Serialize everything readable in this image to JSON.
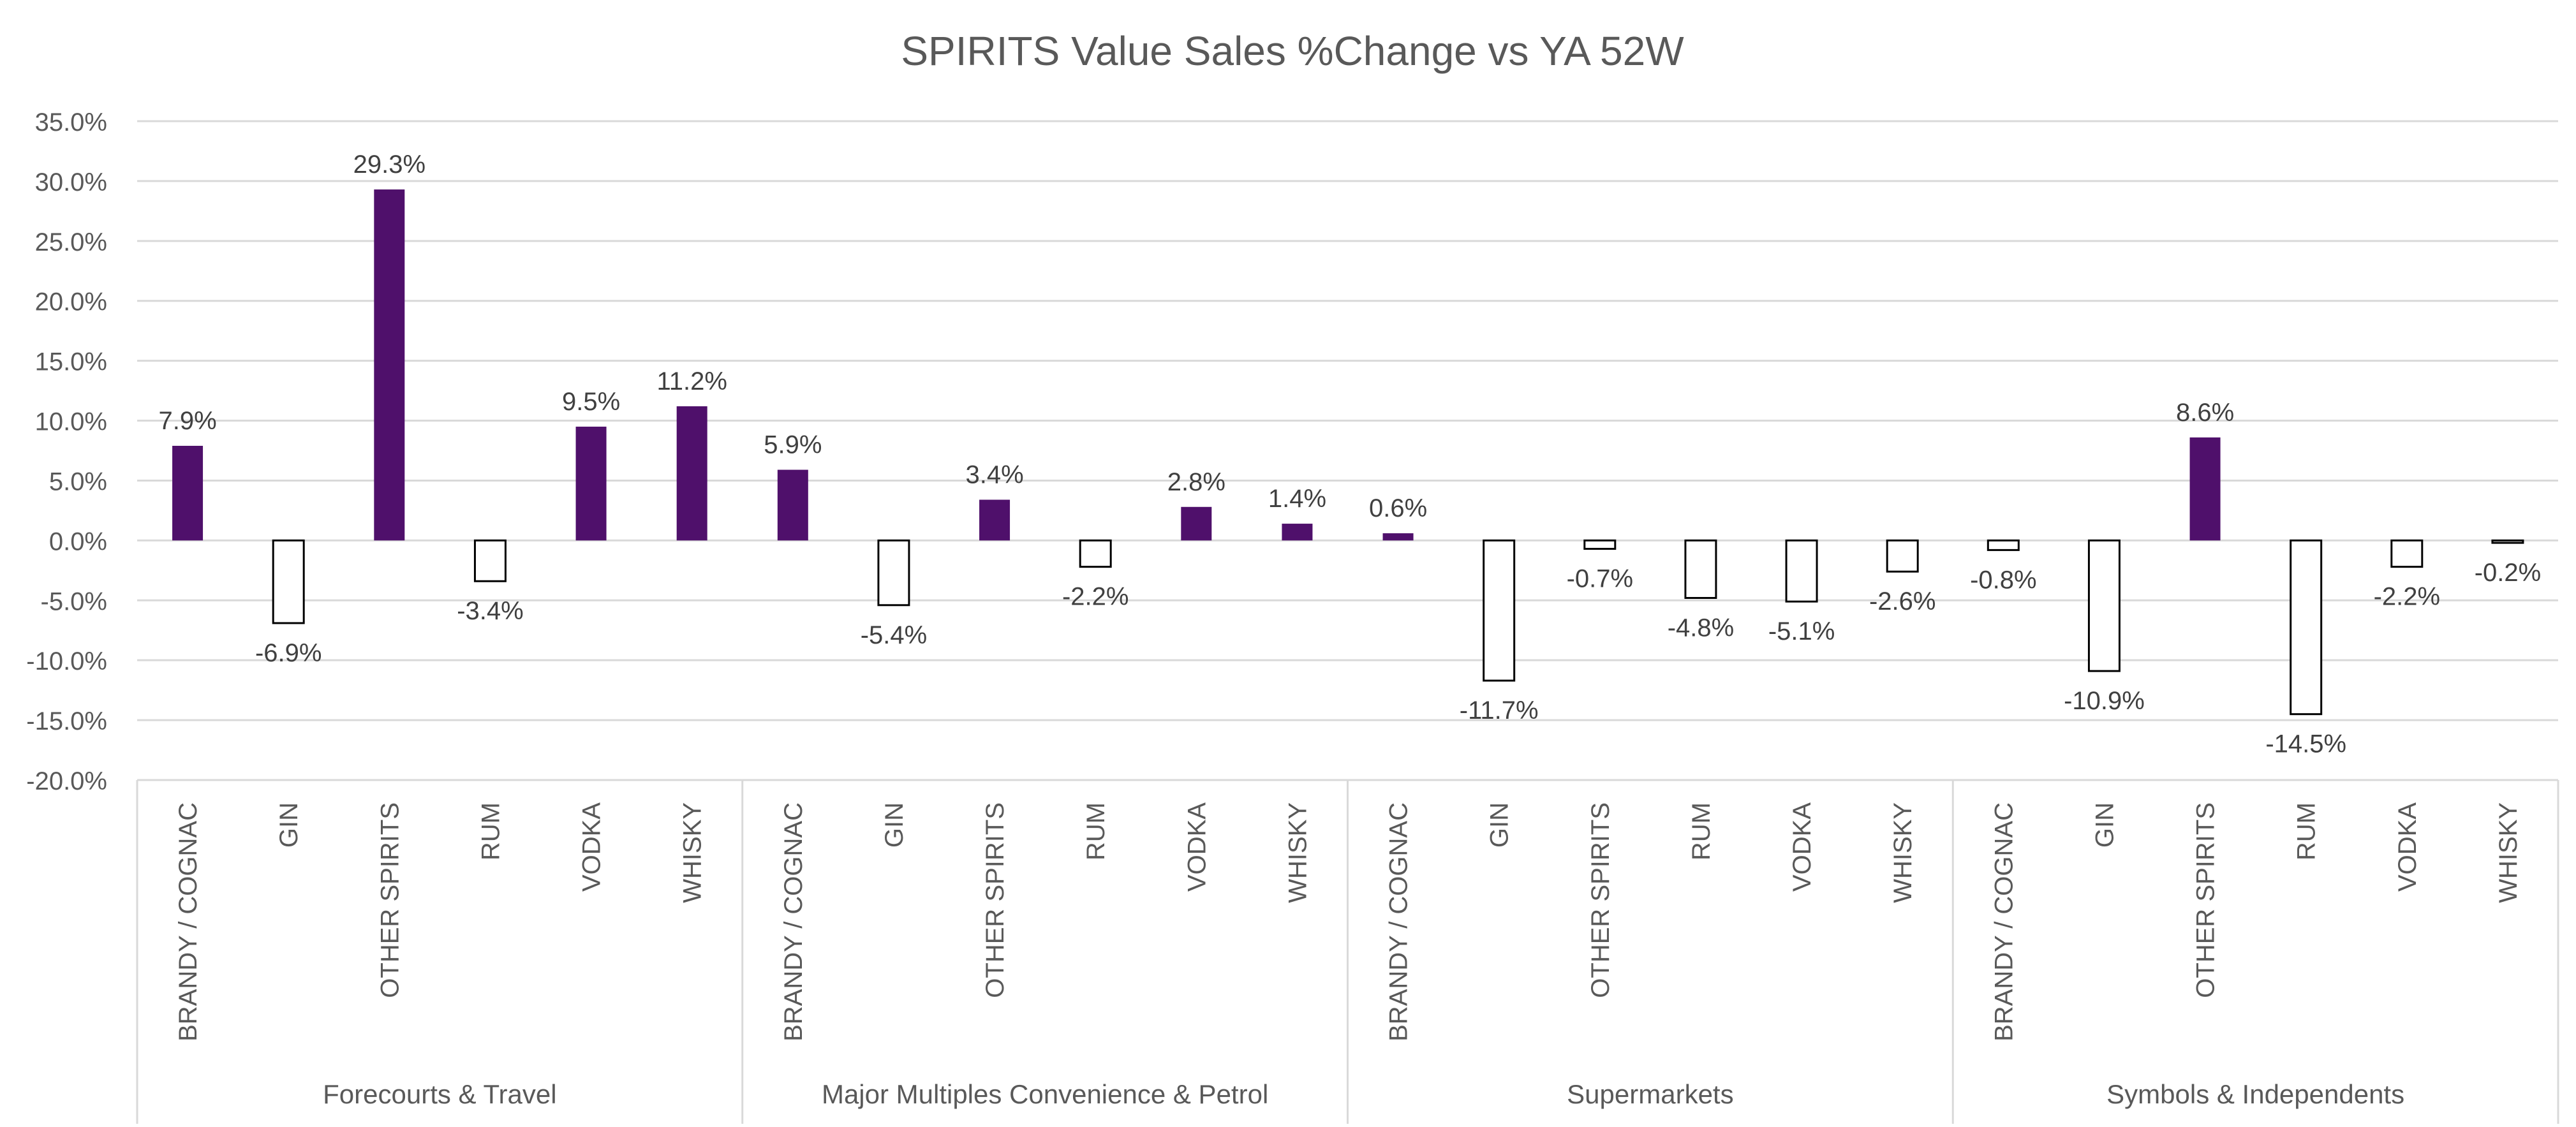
{
  "chart_data": {
    "type": "bar",
    "title": "SPIRITS Value Sales %Change vs YA  52W",
    "xlabel": "",
    "ylabel": "",
    "ylim": [
      -20,
      35
    ],
    "yticks": [
      35,
      30,
      25,
      20,
      15,
      10,
      5,
      0,
      -5,
      -10,
      -15,
      -20
    ],
    "ytick_labels": [
      "35.0%",
      "30.0%",
      "25.0%",
      "20.0%",
      "15.0%",
      "10.0%",
      "5.0%",
      "0.0%",
      "-5.0%",
      "-10.0%",
      "-15.0%",
      "-20.0%"
    ],
    "grid": true,
    "legend": "none",
    "colors": {
      "positive_fill": "#4F106B",
      "negative_fill": "#FFFFFF",
      "negative_stroke": "#000000",
      "gridline": "#D9D9D9",
      "axis_text": "#595959",
      "title_text": "#595959",
      "label_text": "#404040"
    },
    "groups": [
      {
        "name": "Forecourts & Travel",
        "categories": [
          "BRANDY / COGNAC",
          "GIN",
          "OTHER SPIRITS",
          "RUM",
          "VODKA",
          "WHISKY"
        ],
        "values": [
          7.9,
          -6.9,
          29.3,
          -3.4,
          9.5,
          11.2
        ],
        "labels": [
          "7.9%",
          "-6.9%",
          "29.3%",
          "-3.4%",
          "9.5%",
          "11.2%"
        ]
      },
      {
        "name": "Major Multiples Convenience & Petrol",
        "categories": [
          "BRANDY / COGNAC",
          "GIN",
          "OTHER SPIRITS",
          "RUM",
          "VODKA",
          "WHISKY"
        ],
        "values": [
          5.9,
          -5.4,
          3.4,
          -2.2,
          2.8,
          1.4
        ],
        "labels": [
          "5.9%",
          "-5.4%",
          "3.4%",
          "-2.2%",
          "2.8%",
          "1.4%"
        ]
      },
      {
        "name": "Supermarkets",
        "categories": [
          "BRANDY / COGNAC",
          "GIN",
          "OTHER SPIRITS",
          "RUM",
          "VODKA",
          "WHISKY"
        ],
        "values": [
          0.6,
          -11.7,
          -0.7,
          -4.8,
          -5.1,
          -2.6
        ],
        "labels": [
          "0.6%",
          "-11.7%",
          "-0.7%",
          "-4.8%",
          "-5.1%",
          "-2.6%"
        ]
      },
      {
        "name": "Symbols & Independents",
        "categories": [
          "BRANDY / COGNAC",
          "GIN",
          "OTHER SPIRITS",
          "RUM",
          "VODKA",
          "WHISKY"
        ],
        "values": [
          -0.8,
          -10.9,
          8.6,
          -14.5,
          -2.2,
          -0.2
        ],
        "labels": [
          "-0.8%",
          "-10.9%",
          "8.6%",
          "-14.5%",
          "-2.2%",
          "-0.2%"
        ]
      }
    ]
  }
}
